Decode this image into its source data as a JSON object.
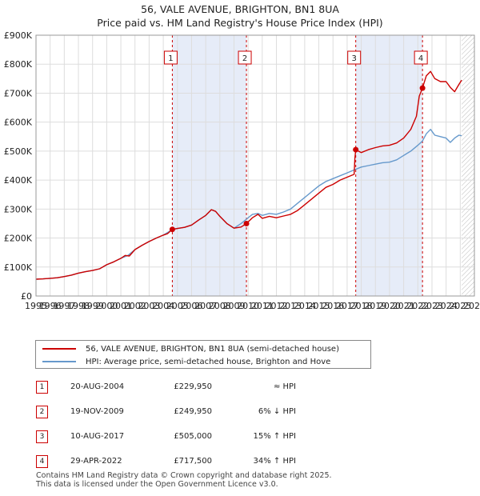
{
  "title": {
    "line1": "56, VALE AVENUE, BRIGHTON, BN1 8UA",
    "line2": "Price paid vs. HM Land Registry's House Price Index (HPI)"
  },
  "chart_data": {
    "type": "line",
    "title": "56, VALE AVENUE, BRIGHTON, BN1 8UA — Price paid vs. HM Land Registry's House Price Index (HPI)",
    "xlim": [
      1995,
      2026
    ],
    "ylim": [
      0,
      900000
    ],
    "x_ticks": [
      "1995",
      "1996",
      "1997",
      "1998",
      "1999",
      "2000",
      "2001",
      "2002",
      "2003",
      "2004",
      "2005",
      "2006",
      "2007",
      "2008",
      "2009",
      "2010",
      "2011",
      "2012",
      "2013",
      "2014",
      "2015",
      "2016",
      "2017",
      "2018",
      "2019",
      "2020",
      "2021",
      "2022",
      "2023",
      "2024",
      "2025",
      "2026"
    ],
    "y_ticks": [
      {
        "value": 0,
        "label": "£0"
      },
      {
        "value": 100000,
        "label": "£100K"
      },
      {
        "value": 200000,
        "label": "£200K"
      },
      {
        "value": 300000,
        "label": "£300K"
      },
      {
        "value": 400000,
        "label": "£400K"
      },
      {
        "value": 500000,
        "label": "£500K"
      },
      {
        "value": 600000,
        "label": "£600K"
      },
      {
        "value": 700000,
        "label": "£700K"
      },
      {
        "value": 800000,
        "label": "£800K"
      },
      {
        "value": 900000,
        "label": "£900K"
      }
    ],
    "grid": true,
    "colors": {
      "property": "#cc0000",
      "hpi": "#6699cc",
      "shade": "#e6ecf8",
      "grid": "#dddddd",
      "marker": "#cc0000"
    },
    "shaded_periods": [
      [
        2004.64,
        2009.88
      ],
      [
        2017.61,
        2022.33
      ]
    ],
    "future_hatch_from": 2025.1,
    "series": [
      {
        "name": "56, VALE AVENUE, BRIGHTON, BN1 8UA (semi-detached house)",
        "x": [
          1995.0,
          1995.5,
          1996.0,
          1996.5,
          1997.0,
          1997.5,
          1998.0,
          1998.5,
          1999.0,
          1999.5,
          2000.0,
          2000.5,
          2001.0,
          2001.3,
          2001.6,
          2002.0,
          2002.5,
          2003.0,
          2003.5,
          2004.0,
          2004.3,
          2004.64,
          2005.0,
          2005.5,
          2006.0,
          2006.5,
          2007.0,
          2007.4,
          2007.7,
          2008.0,
          2008.5,
          2009.0,
          2009.5,
          2009.88,
          2010.3,
          2010.7,
          2011.0,
          2011.5,
          2012.0,
          2012.5,
          2013.0,
          2013.5,
          2014.0,
          2014.5,
          2015.0,
          2015.5,
          2016.0,
          2016.5,
          2017.0,
          2017.5,
          2017.55,
          2017.61,
          2018.0,
          2018.5,
          2019.0,
          2019.5,
          2020.0,
          2020.5,
          2021.0,
          2021.5,
          2021.9,
          2022.1,
          2022.33,
          2022.6,
          2022.9,
          2023.2,
          2023.6,
          2024.0,
          2024.3,
          2024.6,
          2024.9,
          2025.1
        ],
        "values": [
          58000,
          59000,
          61000,
          63000,
          67000,
          72000,
          79000,
          84000,
          88000,
          94000,
          108000,
          118000,
          130000,
          140000,
          138000,
          160000,
          175000,
          188000,
          200000,
          210000,
          215000,
          229950,
          233000,
          237000,
          245000,
          262000,
          278000,
          298000,
          292000,
          275000,
          250000,
          234000,
          238000,
          249950,
          270000,
          282000,
          268000,
          275000,
          270000,
          276000,
          282000,
          295000,
          315000,
          335000,
          355000,
          375000,
          385000,
          400000,
          410000,
          420000,
          475000,
          505000,
          495000,
          505000,
          512000,
          518000,
          520000,
          528000,
          545000,
          575000,
          620000,
          690000,
          717500,
          760000,
          775000,
          750000,
          740000,
          740000,
          720000,
          705000,
          730000,
          745000
        ]
      },
      {
        "name": "HPI: Average price, semi-detached house, Brighton and Hove",
        "x": [
          1995.0,
          1995.5,
          1996.0,
          1996.5,
          1997.0,
          1997.5,
          1998.0,
          1998.5,
          1999.0,
          1999.5,
          2000.0,
          2000.5,
          2001.0,
          2001.5,
          2002.0,
          2002.5,
          2003.0,
          2003.5,
          2004.0,
          2004.64,
          2005.0,
          2005.5,
          2006.0,
          2006.5,
          2007.0,
          2007.4,
          2007.7,
          2008.0,
          2008.5,
          2009.0,
          2009.5,
          2009.88,
          2010.3,
          2010.7,
          2011.0,
          2011.5,
          2012.0,
          2012.5,
          2013.0,
          2013.5,
          2014.0,
          2014.5,
          2015.0,
          2015.5,
          2016.0,
          2016.5,
          2017.0,
          2017.5,
          2018.0,
          2018.5,
          2019.0,
          2019.5,
          2020.0,
          2020.5,
          2021.0,
          2021.5,
          2022.0,
          2022.33,
          2022.6,
          2022.9,
          2023.2,
          2023.6,
          2024.0,
          2024.3,
          2024.6,
          2024.9,
          2025.1
        ],
        "values": [
          58000,
          59000,
          61000,
          63000,
          67000,
          72000,
          79000,
          84000,
          88000,
          94000,
          108000,
          118000,
          130000,
          140000,
          160000,
          175000,
          188000,
          200000,
          210000,
          229000,
          233000,
          237000,
          245000,
          262000,
          278000,
          298000,
          292000,
          275000,
          250000,
          234000,
          250000,
          265000,
          282000,
          285000,
          278000,
          285000,
          282000,
          290000,
          300000,
          320000,
          340000,
          360000,
          380000,
          395000,
          405000,
          415000,
          425000,
          435000,
          445000,
          450000,
          455000,
          460000,
          462000,
          470000,
          485000,
          500000,
          520000,
          535000,
          560000,
          575000,
          555000,
          550000,
          545000,
          530000,
          545000,
          555000,
          553000
        ]
      }
    ],
    "sales": [
      {
        "id": "1",
        "x": 2004.64,
        "value": 229950
      },
      {
        "id": "2",
        "x": 2009.88,
        "value": 249950
      },
      {
        "id": "3",
        "x": 2017.61,
        "value": 505000
      },
      {
        "id": "4",
        "x": 2022.33,
        "value": 717500
      }
    ]
  },
  "legend": {
    "property_label": "56, VALE AVENUE, BRIGHTON, BN1 8UA (semi-detached house)",
    "hpi_label": "HPI: Average price, semi-detached house, Brighton and Hove"
  },
  "sales_table": [
    {
      "num": "1",
      "date": "20-AUG-2004",
      "price": "£229,950",
      "hpi": "≈ HPI"
    },
    {
      "num": "2",
      "date": "19-NOV-2009",
      "price": "£249,950",
      "hpi": "6% ↓ HPI"
    },
    {
      "num": "3",
      "date": "10-AUG-2017",
      "price": "£505,000",
      "hpi": "15% ↑ HPI"
    },
    {
      "num": "4",
      "date": "29-APR-2022",
      "price": "£717,500",
      "hpi": "34% ↑ HPI"
    }
  ],
  "footer": {
    "line1": "Contains HM Land Registry data © Crown copyright and database right 2025.",
    "line2": "This data is licensed under the Open Government Licence v3.0."
  }
}
